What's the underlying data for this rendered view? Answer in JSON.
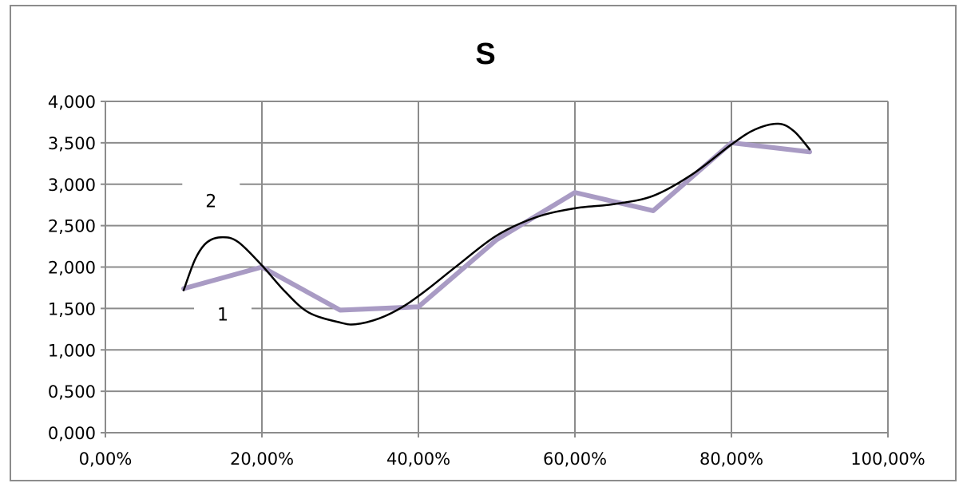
{
  "chart_data": {
    "type": "line",
    "title": "S",
    "xlim": [
      0,
      100
    ],
    "ylim": [
      0,
      4
    ],
    "x_ticks": [
      0,
      20,
      40,
      60,
      80,
      100
    ],
    "x_tick_labels": [
      "0,00%",
      "20,00%",
      "40,00%",
      "60,00%",
      "80,00%",
      "100,00%"
    ],
    "y_ticks": [
      0,
      0.5,
      1,
      1.5,
      2,
      2.5,
      3,
      3.5,
      4
    ],
    "y_tick_labels": [
      "0,000",
      "0,500",
      "1,000",
      "1,500",
      "2,000",
      "2,500",
      "3,000",
      "3,500",
      "4,000"
    ],
    "grid": true,
    "series": [
      {
        "label": "1",
        "color": "#a99bc4",
        "style": "straight",
        "x": [
          10,
          20,
          30,
          40,
          50,
          60,
          70,
          80,
          90
        ],
        "y": [
          1.74,
          2.0,
          1.48,
          1.52,
          2.33,
          2.9,
          2.68,
          3.5,
          3.39
        ]
      },
      {
        "label": "2",
        "color": "#000000",
        "style": "smooth",
        "x": [
          10,
          11.5,
          13,
          15,
          17,
          20,
          23,
          26,
          30,
          32,
          35,
          38,
          41,
          45,
          50,
          55,
          60,
          65,
          70,
          75,
          80,
          83,
          86,
          88,
          90
        ],
        "y": [
          1.72,
          2.1,
          2.3,
          2.36,
          2.3,
          2.02,
          1.7,
          1.45,
          1.33,
          1.31,
          1.38,
          1.52,
          1.72,
          2.02,
          2.38,
          2.6,
          2.71,
          2.76,
          2.86,
          3.12,
          3.48,
          3.66,
          3.73,
          3.64,
          3.42
        ]
      }
    ],
    "annotations": [
      {
        "text": "2",
        "x": 13.5,
        "y": 2.8
      },
      {
        "text": "1",
        "x": 15,
        "y": 1.43
      }
    ]
  }
}
